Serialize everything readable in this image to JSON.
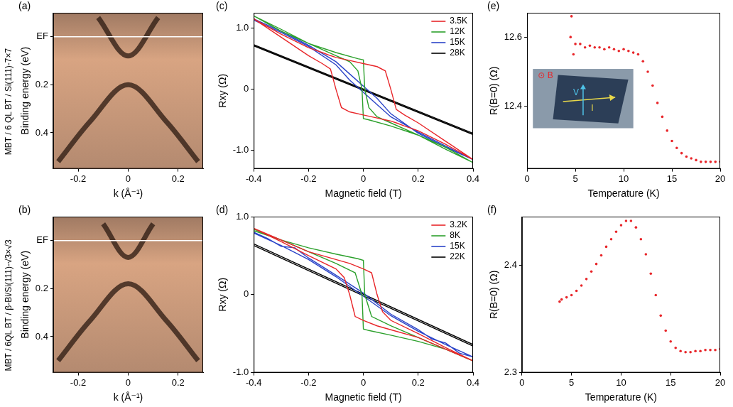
{
  "chart_data": [
    {
      "type": "spectrum",
      "panel": "(a)",
      "side_label": "MBT / 6 QL BT / Si(111)-7×7",
      "x_label": "k (Å⁻¹)",
      "y_label": "Binding energy (eV)",
      "xlim": [
        -0.3,
        0.3
      ],
      "xticks": [
        -0.2,
        0,
        0.2
      ],
      "ylim": [
        0.55,
        -0.1
      ],
      "yticks": [
        {
          "value": 0,
          "label": "EF"
        },
        0.2,
        0.4
      ],
      "grid": false,
      "series": [
        {
          "color": "#2a1810",
          "line_style": "solid",
          "marker": "none",
          "x": [
            -0.28,
            -0.15,
            0,
            0.15,
            0.28,
            null,
            -0.12,
            0,
            0.12
          ],
          "values": [
            0.52,
            0.35,
            0.2,
            0.35,
            0.52,
            null,
            -0.08,
            0.08,
            -0.08
          ]
        }
      ]
    },
    {
      "type": "spectrum",
      "panel": "(b)",
      "side_label": "MBT / 6QL BT / β-Bi/Si(111)-√3×√3",
      "x_label": "k (Å⁻¹)",
      "y_label": "Binding energy (eV)",
      "xlim": [
        -0.3,
        0.3
      ],
      "xticks": [
        -0.2,
        0,
        0.2
      ],
      "ylim": [
        0.55,
        -0.1
      ],
      "yticks": [
        {
          "value": 0,
          "label": "EF"
        },
        0.2,
        0.4
      ],
      "grid": false,
      "series": [
        {
          "color": "#2a1810",
          "line_style": "solid",
          "marker": "none",
          "x": [
            -0.28,
            -0.15,
            0,
            0.15,
            0.28,
            null,
            -0.1,
            0,
            0.1
          ],
          "values": [
            0.5,
            0.33,
            0.18,
            0.33,
            0.5,
            null,
            -0.07,
            0.07,
            -0.07
          ]
        }
      ]
    },
    {
      "type": "line",
      "panel": "(c)",
      "x_label": "Magnetic field (T)",
      "y_label": "Rxy (Ω)",
      "xlim": [
        -0.4,
        0.4
      ],
      "xticks": [
        -0.4,
        -0.2,
        0,
        0.2,
        0.4
      ],
      "ylim": [
        -1.3,
        1.25
      ],
      "yticks": [
        {
          "value": -1,
          "label": "-1.0"
        },
        0,
        {
          "value": 1,
          "label": "1.0"
        }
      ],
      "grid": false,
      "legend": "upper right",
      "series": [
        {
          "name": "3.5K",
          "color": "#e8262a",
          "line_style": "solid",
          "marker": "none",
          "x": [
            -0.4,
            -0.3,
            -0.2,
            -0.15,
            -0.12,
            -0.1,
            -0.08,
            -0.05,
            0,
            0.05,
            0.08,
            0.1,
            0.12,
            0.15,
            0.2,
            0.3,
            0.4,
            0.3,
            0.2,
            0.15,
            0.12,
            0.1,
            0.08,
            0.05,
            0,
            -0.05,
            -0.08,
            -0.1,
            -0.12,
            -0.15,
            -0.2,
            -0.3,
            -0.4
          ],
          "values": [
            1.15,
            0.9,
            0.68,
            0.6,
            0.55,
            0.52,
            0.5,
            0.47,
            0.42,
            0.37,
            0.3,
            0.0,
            -0.33,
            -0.42,
            -0.55,
            -0.85,
            -1.15,
            -0.9,
            -0.68,
            -0.6,
            -0.55,
            -0.52,
            -0.5,
            -0.47,
            -0.42,
            -0.37,
            -0.3,
            0.0,
            0.33,
            0.42,
            0.55,
            0.85,
            1.15
          ]
        },
        {
          "name": "12K",
          "color": "#2ca02c",
          "line_style": "solid",
          "marker": "none",
          "x": [
            -0.4,
            -0.3,
            -0.2,
            -0.1,
            -0.02,
            0,
            0.005,
            0.02,
            0.05,
            0.1,
            0.2,
            0.3,
            0.4,
            0.3,
            0.2,
            0.1,
            0.02,
            0,
            -0.005,
            -0.02,
            -0.05,
            -0.1,
            -0.2,
            -0.3,
            -0.4
          ],
          "values": [
            1.2,
            0.95,
            0.75,
            0.6,
            0.5,
            0.48,
            0.0,
            -0.3,
            -0.45,
            -0.55,
            -0.75,
            -0.98,
            -1.2,
            -0.95,
            -0.75,
            -0.6,
            -0.5,
            -0.48,
            0.0,
            0.3,
            0.45,
            0.55,
            0.75,
            0.98,
            1.2
          ]
        },
        {
          "name": "15K",
          "color": "#2b44c8",
          "line_style": "solid",
          "marker": "none",
          "x": [
            -0.4,
            -0.3,
            -0.2,
            -0.1,
            -0.05,
            0,
            0.05,
            0.1,
            0.2,
            0.3,
            0.4,
            0.3,
            0.2,
            0.1,
            0.05,
            0,
            -0.05,
            -0.1,
            -0.2,
            -0.3,
            -0.4
          ],
          "values": [
            1.15,
            0.95,
            0.72,
            0.45,
            0.25,
            0.05,
            -0.15,
            -0.4,
            -0.72,
            -0.95,
            -1.15,
            -0.93,
            -0.7,
            -0.45,
            -0.25,
            -0.05,
            0.15,
            0.4,
            0.7,
            0.93,
            1.13
          ]
        },
        {
          "name": "28K",
          "color": "#000000",
          "line_style": "solid",
          "marker": "none",
          "x": [
            -0.4,
            0.4,
            0.4,
            -0.4
          ],
          "values": [
            0.73,
            -0.72,
            -0.74,
            0.71
          ]
        }
      ]
    },
    {
      "type": "line",
      "panel": "(d)",
      "x_label": "Magnetic field (T)",
      "y_label": "Rxy (Ω)",
      "xlim": [
        -0.4,
        0.4
      ],
      "xticks": [
        -0.4,
        -0.2,
        0,
        0.2,
        0.4
      ],
      "ylim": [
        -1.0,
        1.0
      ],
      "yticks": [
        {
          "value": -1,
          "label": "-1.0"
        },
        0,
        {
          "value": 1,
          "label": "1.0"
        }
      ],
      "grid": false,
      "legend": "upper right",
      "series": [
        {
          "name": "3.2K",
          "color": "#e8262a",
          "line_style": "solid",
          "marker": "none",
          "x": [
            -0.4,
            -0.3,
            -0.2,
            -0.1,
            -0.05,
            0,
            0.03,
            0.05,
            0.07,
            0.1,
            0.2,
            0.3,
            0.4,
            0.3,
            0.2,
            0.1,
            0.05,
            0,
            -0.03,
            -0.05,
            -0.07,
            -0.1,
            -0.2,
            -0.3,
            -0.4
          ],
          "values": [
            0.85,
            0.7,
            0.55,
            0.45,
            0.4,
            0.33,
            0.28,
            0.0,
            -0.22,
            -0.33,
            -0.5,
            -0.68,
            -0.85,
            -0.7,
            -0.55,
            -0.45,
            -0.4,
            -0.33,
            -0.28,
            0.0,
            0.22,
            0.33,
            0.5,
            0.68,
            0.85
          ]
        },
        {
          "name": "8K",
          "color": "#2ca02c",
          "line_style": "solid",
          "marker": "none",
          "x": [
            -0.4,
            -0.3,
            -0.2,
            -0.1,
            -0.02,
            0,
            0.005,
            0.03,
            0.1,
            0.2,
            0.3,
            0.4,
            0.3,
            0.2,
            0.1,
            0.02,
            0,
            -0.005,
            -0.03,
            -0.1,
            -0.2,
            -0.3,
            -0.4
          ],
          "values": [
            0.82,
            0.7,
            0.6,
            0.52,
            0.46,
            0.44,
            0.0,
            -0.28,
            -0.4,
            -0.55,
            -0.7,
            -0.85,
            -0.7,
            -0.6,
            -0.52,
            -0.46,
            -0.44,
            0.0,
            0.28,
            0.4,
            0.55,
            0.7,
            0.84
          ]
        },
        {
          "name": "15K",
          "color": "#2b44c8",
          "line_style": "solid",
          "marker": "none",
          "x": [
            -0.4,
            -0.35,
            -0.3,
            -0.25,
            -0.2,
            -0.1,
            0,
            0.1,
            0.2,
            0.25,
            0.3,
            0.35,
            0.4,
            0.3,
            0.2,
            0.1,
            0,
            -0.1,
            -0.2,
            -0.3,
            -0.4
          ],
          "values": [
            0.8,
            0.72,
            0.62,
            0.6,
            0.47,
            0.25,
            0.02,
            -0.25,
            -0.45,
            -0.57,
            -0.62,
            -0.75,
            -0.8,
            -0.64,
            -0.47,
            -0.27,
            -0.02,
            0.23,
            0.45,
            0.63,
            0.79
          ]
        },
        {
          "name": "22K",
          "color": "#000000",
          "line_style": "solid",
          "marker": "none",
          "x": [
            -0.4,
            0.4,
            0.4,
            -0.4
          ],
          "values": [
            0.65,
            -0.64,
            -0.66,
            0.63
          ]
        }
      ]
    },
    {
      "type": "scatter",
      "panel": "(e)",
      "x_label": "Temperature (K)",
      "y_label": "R(B=0) (Ω)",
      "xlim": [
        0,
        20
      ],
      "xticks": [
        0,
        5,
        10,
        15,
        20
      ],
      "ylim": [
        12.22,
        12.67
      ],
      "yticks": [
        12.4,
        12.6
      ],
      "grid": false,
      "inset": {
        "labels": [
          "⊙ B",
          "V",
          "I"
        ]
      },
      "series": [
        {
          "color": "#e8262a",
          "marker": "circle",
          "line_style": "none",
          "x": [
            4.5,
            4.6,
            4.8,
            5,
            5.5,
            6,
            6.5,
            7,
            7.5,
            8,
            8.5,
            9,
            9.5,
            10,
            10.5,
            11,
            11.5,
            12,
            12.5,
            13,
            13.5,
            14,
            14.5,
            15,
            15.5,
            16,
            16.5,
            17,
            17.5,
            18,
            18.5,
            19,
            19.5,
            20
          ],
          "values": [
            12.6,
            12.66,
            12.55,
            12.58,
            12.58,
            12.57,
            12.575,
            12.57,
            12.57,
            12.565,
            12.57,
            12.565,
            12.56,
            12.565,
            12.56,
            12.555,
            12.55,
            12.53,
            12.5,
            12.46,
            12.41,
            12.37,
            12.33,
            12.3,
            12.28,
            12.265,
            12.255,
            12.25,
            12.245,
            12.24,
            12.24,
            12.24,
            12.24,
            12.24
          ]
        }
      ]
    },
    {
      "type": "scatter",
      "panel": "(f)",
      "x_label": "Temperature (K)",
      "y_label": "R(B=0) (Ω)",
      "xlim": [
        0,
        20
      ],
      "xticks": [
        0,
        5,
        10,
        15,
        20
      ],
      "ylim": [
        2.3,
        2.445
      ],
      "yticks": [
        2.3,
        2.4
      ],
      "grid": false,
      "series": [
        {
          "color": "#e8262a",
          "marker": "circle",
          "line_style": "none",
          "x": [
            3.8,
            4,
            4.5,
            5,
            5.5,
            6,
            6.5,
            7,
            7.5,
            8,
            8.5,
            9,
            9.5,
            10,
            10.5,
            11,
            11.5,
            12,
            12.5,
            13,
            13.5,
            14,
            14.5,
            15,
            15.5,
            16,
            16.5,
            17,
            17.5,
            18,
            18.5,
            19,
            19.5,
            20
          ],
          "values": [
            2.366,
            2.368,
            2.37,
            2.372,
            2.376,
            2.381,
            2.387,
            2.394,
            2.401,
            2.409,
            2.417,
            2.424,
            2.431,
            2.437,
            2.441,
            2.441,
            2.435,
            2.424,
            2.41,
            2.392,
            2.372,
            2.353,
            2.339,
            2.329,
            2.323,
            2.32,
            2.319,
            2.319,
            2.32,
            2.32,
            2.321,
            2.321,
            2.321,
            2.322
          ]
        }
      ]
    }
  ]
}
